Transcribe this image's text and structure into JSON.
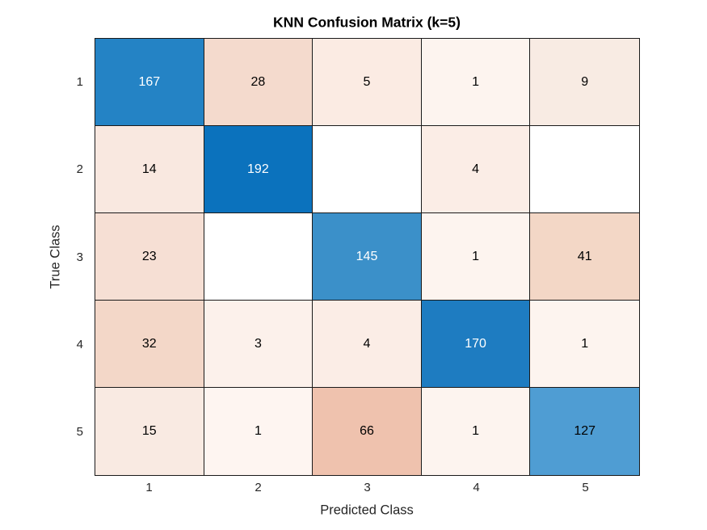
{
  "title": "KNN Confusion Matrix (k=5)",
  "axes": {
    "xlabel": "Predicted Class",
    "ylabel": "True Class"
  },
  "colors": {
    "diagonal_base": "#0072BD",
    "offdiagonal_base": "#D95319",
    "grid_line": "#1a1a1a",
    "tick_text": "#262626",
    "title_text": "#000000",
    "background": "#ffffff"
  },
  "chart_data": {
    "type": "heatmap",
    "title": "KNN Confusion Matrix (k=5)",
    "xlabel": "Predicted Class",
    "ylabel": "True Class",
    "x_categories": [
      "1",
      "2",
      "3",
      "4",
      "5"
    ],
    "y_categories": [
      "1",
      "2",
      "3",
      "4",
      "5"
    ],
    "matrix": [
      [
        167,
        28,
        5,
        1,
        9
      ],
      [
        14,
        192,
        null,
        4,
        null
      ],
      [
        23,
        null,
        145,
        1,
        41
      ],
      [
        32,
        3,
        4,
        170,
        1
      ],
      [
        15,
        1,
        66,
        1,
        127
      ]
    ],
    "cell_colors": [
      [
        "#2483C5",
        "#F4DACD",
        "#FBEBE3",
        "#FDF4EF",
        "#F8EBE3"
      ],
      [
        "#F9E8E0",
        "#0B72BD",
        "#FFFFFF",
        "#FBEDE6",
        "#FFFFFF"
      ],
      [
        "#F6DFD4",
        "#FFFFFF",
        "#3B90C9",
        "#FDF4EF",
        "#F3D7C6"
      ],
      [
        "#F3D7C8",
        "#FCF1EB",
        "#FBEDE6",
        "#1E7CC1",
        "#FDF4EF"
      ],
      [
        "#F9EAE2",
        "#FEF5F1",
        "#EFC2AE",
        "#FDF4EF",
        "#4F9DD3"
      ]
    ],
    "text_colors": [
      [
        "#FFFFFF",
        "#000000",
        "#000000",
        "#000000",
        "#000000"
      ],
      [
        "#000000",
        "#FFFFFF",
        "#000000",
        "#000000",
        "#000000"
      ],
      [
        "#000000",
        "#000000",
        "#FFFFFF",
        "#000000",
        "#000000"
      ],
      [
        "#000000",
        "#000000",
        "#000000",
        "#FFFFFF",
        "#000000"
      ],
      [
        "#000000",
        "#000000",
        "#000000",
        "#000000",
        "#000000"
      ]
    ],
    "grid": true,
    "legend": "none"
  }
}
